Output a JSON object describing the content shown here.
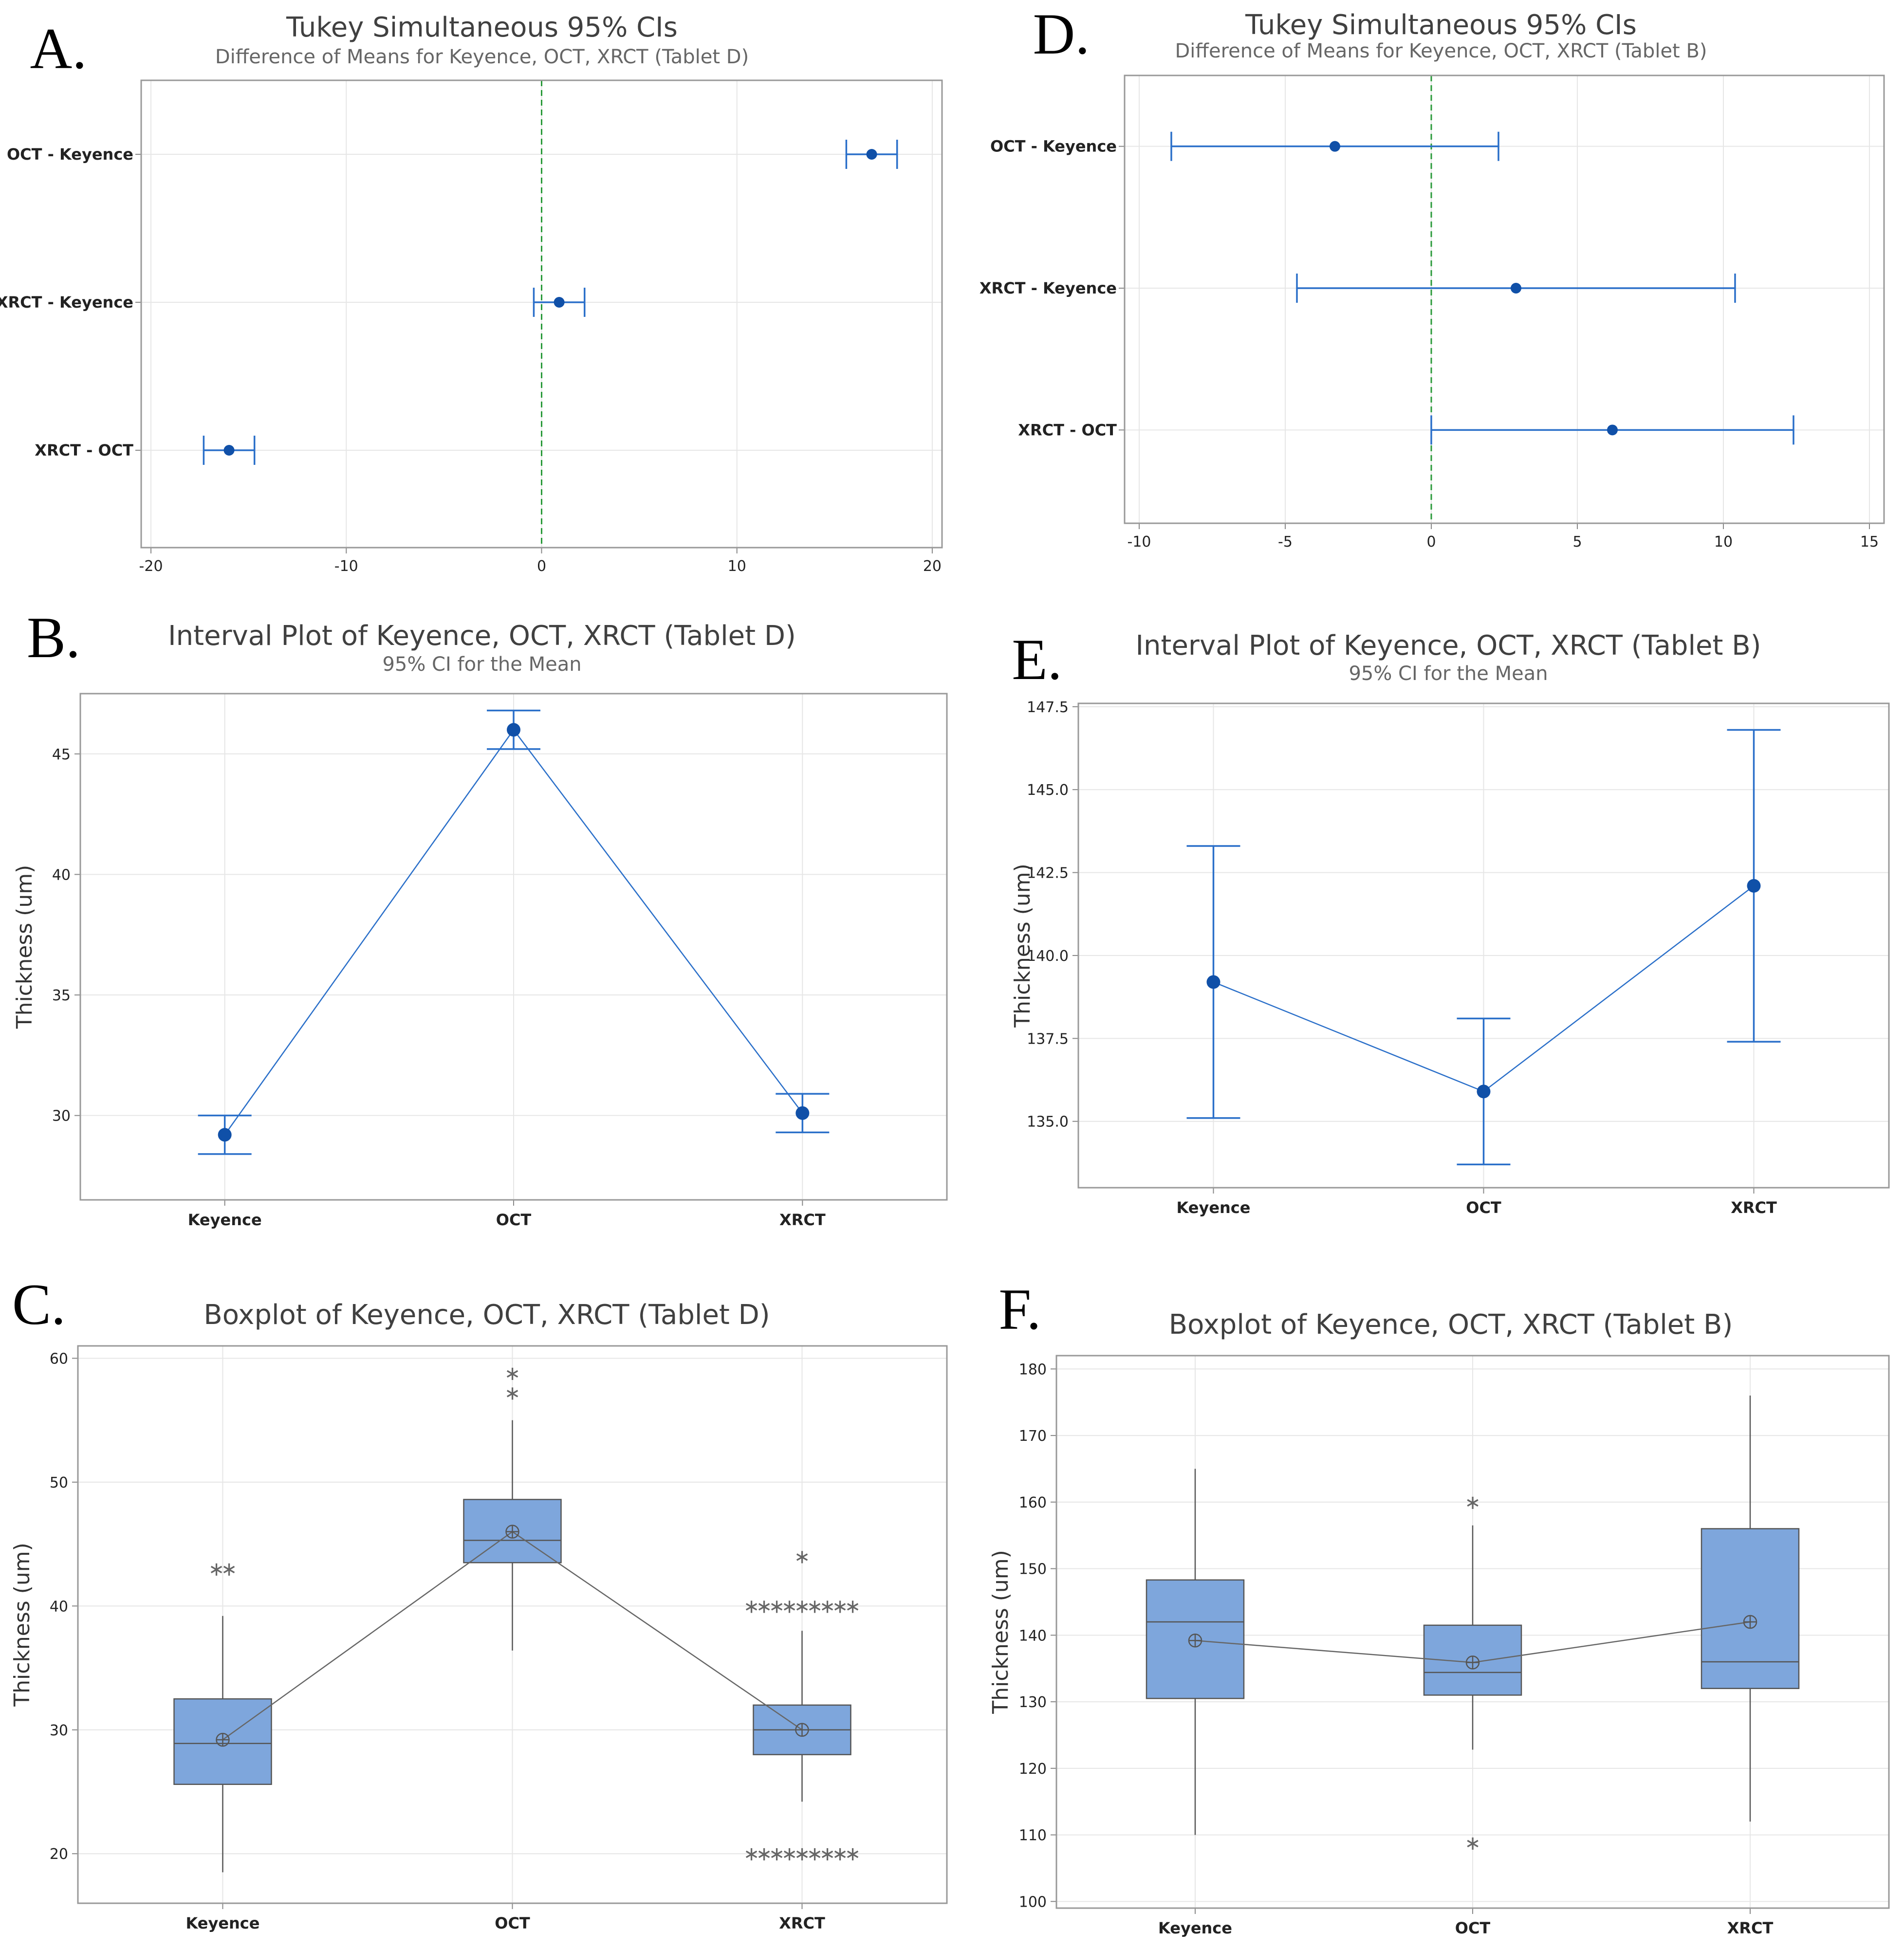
{
  "panels": [
    {
      "id": "A",
      "letter": "A.",
      "kind": "tukey",
      "title": "Tukey Simultaneous 95% CIs",
      "subtitle": "Difference of Means for Keyence, OCT, XRCT (Tablet D)",
      "xlim": [
        -20.5,
        20.5
      ],
      "ticks": [
        -20,
        -10,
        0,
        10,
        20
      ],
      "rows": [
        {
          "label": "OCT - Keyence",
          "mean": 16.9,
          "lo": 15.6,
          "hi": 18.2
        },
        {
          "label": "XRCT - Keyence",
          "mean": 0.9,
          "lo": -0.4,
          "hi": 2.2
        },
        {
          "label": "XRCT - OCT",
          "mean": -16.0,
          "lo": -17.3,
          "hi": -14.7
        }
      ]
    },
    {
      "id": "D",
      "letter": "D.",
      "kind": "tukey",
      "title": "Tukey Simultaneous 95% CIs",
      "subtitle": "Difference of Means for Keyence, OCT, XRCT (Tablet B)",
      "xlim": [
        -10.5,
        15.5
      ],
      "ticks": [
        -10,
        -5,
        0,
        5,
        10,
        15
      ],
      "rows": [
        {
          "label": "OCT - Keyence",
          "mean": -3.3,
          "lo": -8.9,
          "hi": 2.3
        },
        {
          "label": "XRCT - Keyence",
          "mean": 2.9,
          "lo": -4.6,
          "hi": 10.4
        },
        {
          "label": "XRCT - OCT",
          "mean": 6.2,
          "lo": 0.0,
          "hi": 12.4
        }
      ]
    },
    {
      "id": "B",
      "letter": "B.",
      "kind": "interval",
      "title": "Interval Plot of Keyence, OCT, XRCT (Tablet D)",
      "subtitle": "95% CI for the Mean",
      "ylabel": "Thickness (um)",
      "ylim": [
        26.5,
        47.5
      ],
      "ticks": [
        30,
        35,
        40,
        45
      ],
      "categories": [
        "Keyence",
        "OCT",
        "XRCT"
      ],
      "means": [
        29.2,
        46.0,
        30.1
      ],
      "lo": [
        28.4,
        45.2,
        29.3
      ],
      "hi": [
        30.0,
        46.8,
        30.9
      ]
    },
    {
      "id": "E",
      "letter": "E.",
      "kind": "interval",
      "title": "Interval Plot of Keyence, OCT, XRCT (Tablet B)",
      "subtitle": "95% CI for the Mean",
      "ylabel": "Thickness (um)",
      "ylim": [
        133.0,
        147.6
      ],
      "ticks": [
        "135.0",
        "137.5",
        "140.0",
        "142.5",
        "145.0",
        "147.5"
      ],
      "categories": [
        "Keyence",
        "OCT",
        "XRCT"
      ],
      "means": [
        139.2,
        135.9,
        142.1
      ],
      "lo": [
        135.1,
        133.7,
        137.4
      ],
      "hi": [
        143.3,
        138.1,
        146.8
      ]
    },
    {
      "id": "C",
      "letter": "C.",
      "kind": "box",
      "title": "Boxplot of Keyence, OCT, XRCT (Tablet D)",
      "ylabel": "Thickness (um)",
      "ylim": [
        16,
        61
      ],
      "ticks": [
        20,
        30,
        40,
        50,
        60
      ],
      "categories": [
        "Keyence",
        "OCT",
        "XRCT"
      ],
      "boxes": [
        {
          "min": 18.5,
          "q1": 25.6,
          "median": 28.9,
          "q3": 32.5,
          "max": 39.2,
          "mean": 29.2,
          "outliers": [
            {
              "y": 43.0,
              "n": 2
            }
          ]
        },
        {
          "min": 36.4,
          "q1": 43.5,
          "median": 45.3,
          "q3": 48.6,
          "max": 55.0,
          "mean": 46.0,
          "outliers": [
            {
              "y": 57.2,
              "n": 1
            },
            {
              "y": 58.8,
              "n": 1
            }
          ]
        },
        {
          "min": 24.2,
          "q1": 28.0,
          "median": 30.0,
          "q3": 32.0,
          "max": 38.0,
          "mean": 30.0,
          "outliers": [
            {
              "y": 44.0,
              "n": 1
            },
            {
              "y": 40.0,
              "n": 9
            },
            {
              "y": 20.0,
              "n": 9
            }
          ]
        }
      ]
    },
    {
      "id": "F",
      "letter": "F.",
      "kind": "box",
      "title": "Boxplot of Keyence, OCT, XRCT (Tablet B)",
      "ylabel": "Thickness (um)",
      "ylim": [
        99,
        182
      ],
      "ticks": [
        100,
        110,
        120,
        130,
        140,
        150,
        160,
        170,
        180
      ],
      "categories": [
        "Keyence",
        "OCT",
        "XRCT"
      ],
      "boxes": [
        {
          "min": 110,
          "q1": 130.5,
          "median": 142.0,
          "q3": 148.3,
          "max": 165.0,
          "mean": 139.2,
          "outliers": []
        },
        {
          "min": 122.8,
          "q1": 131.0,
          "median": 134.4,
          "q3": 141.5,
          "max": 156.5,
          "mean": 135.9,
          "outliers": [
            {
              "y": 160.0,
              "n": 1
            },
            {
              "y": 108.8,
              "n": 1
            }
          ]
        },
        {
          "min": 112,
          "q1": 132.0,
          "median": 136.0,
          "q3": 156.0,
          "max": 176.0,
          "mean": 142.0,
          "outliers": []
        }
      ]
    }
  ]
}
